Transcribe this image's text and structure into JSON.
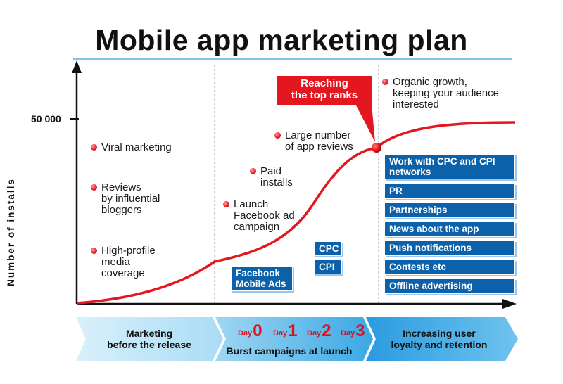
{
  "title": "Mobile app marketing plan",
  "y_axis": {
    "label": "Number of installs",
    "tick_label": "50 000"
  },
  "curve_notes": [
    {
      "text": "Viral marketing"
    },
    {
      "text": "Reviews\nby influential\nbloggers"
    },
    {
      "text": "High-profile\nmedia\ncoverage"
    },
    {
      "text": "Launch\nFacebook ad\ncampaign"
    },
    {
      "text": "Paid\ninstalls"
    },
    {
      "text": "Large number\nof app reviews"
    },
    {
      "text": "Organic growth,\nkeeping your audience\ninterested"
    }
  ],
  "callout": {
    "text": "Reaching\nthe top ranks",
    "color": "#e4161f"
  },
  "launch_boxes": [
    {
      "text": "Facebook\nMobile Ads"
    },
    {
      "text": "CPC"
    },
    {
      "text": "CPI"
    }
  ],
  "retention_boxes": [
    {
      "text": "Work with CPC and CPI\nnetworks"
    },
    {
      "text": "PR"
    },
    {
      "text": "Partnerships"
    },
    {
      "text": "News about the app"
    },
    {
      "text": "Push notifications"
    },
    {
      "text": "Contests etc"
    },
    {
      "text": "Offline advertising"
    }
  ],
  "phases": [
    {
      "text": "Marketing\nbefore the release"
    },
    {
      "text": "Burst campaigns at launch"
    },
    {
      "text": "Increasing user\nloyalty and retention"
    }
  ],
  "days": [
    {
      "word": "Day",
      "num": "0"
    },
    {
      "word": "Day",
      "num": "1"
    },
    {
      "word": "Day",
      "num": "2"
    },
    {
      "word": "Day",
      "num": "3"
    }
  ],
  "colors": {
    "curve": "#e4161f",
    "box": "#0b62ab",
    "band": "#bfe4f7",
    "band_dark": "#2e9fe0",
    "title_rule": "#7fc3ea"
  }
}
